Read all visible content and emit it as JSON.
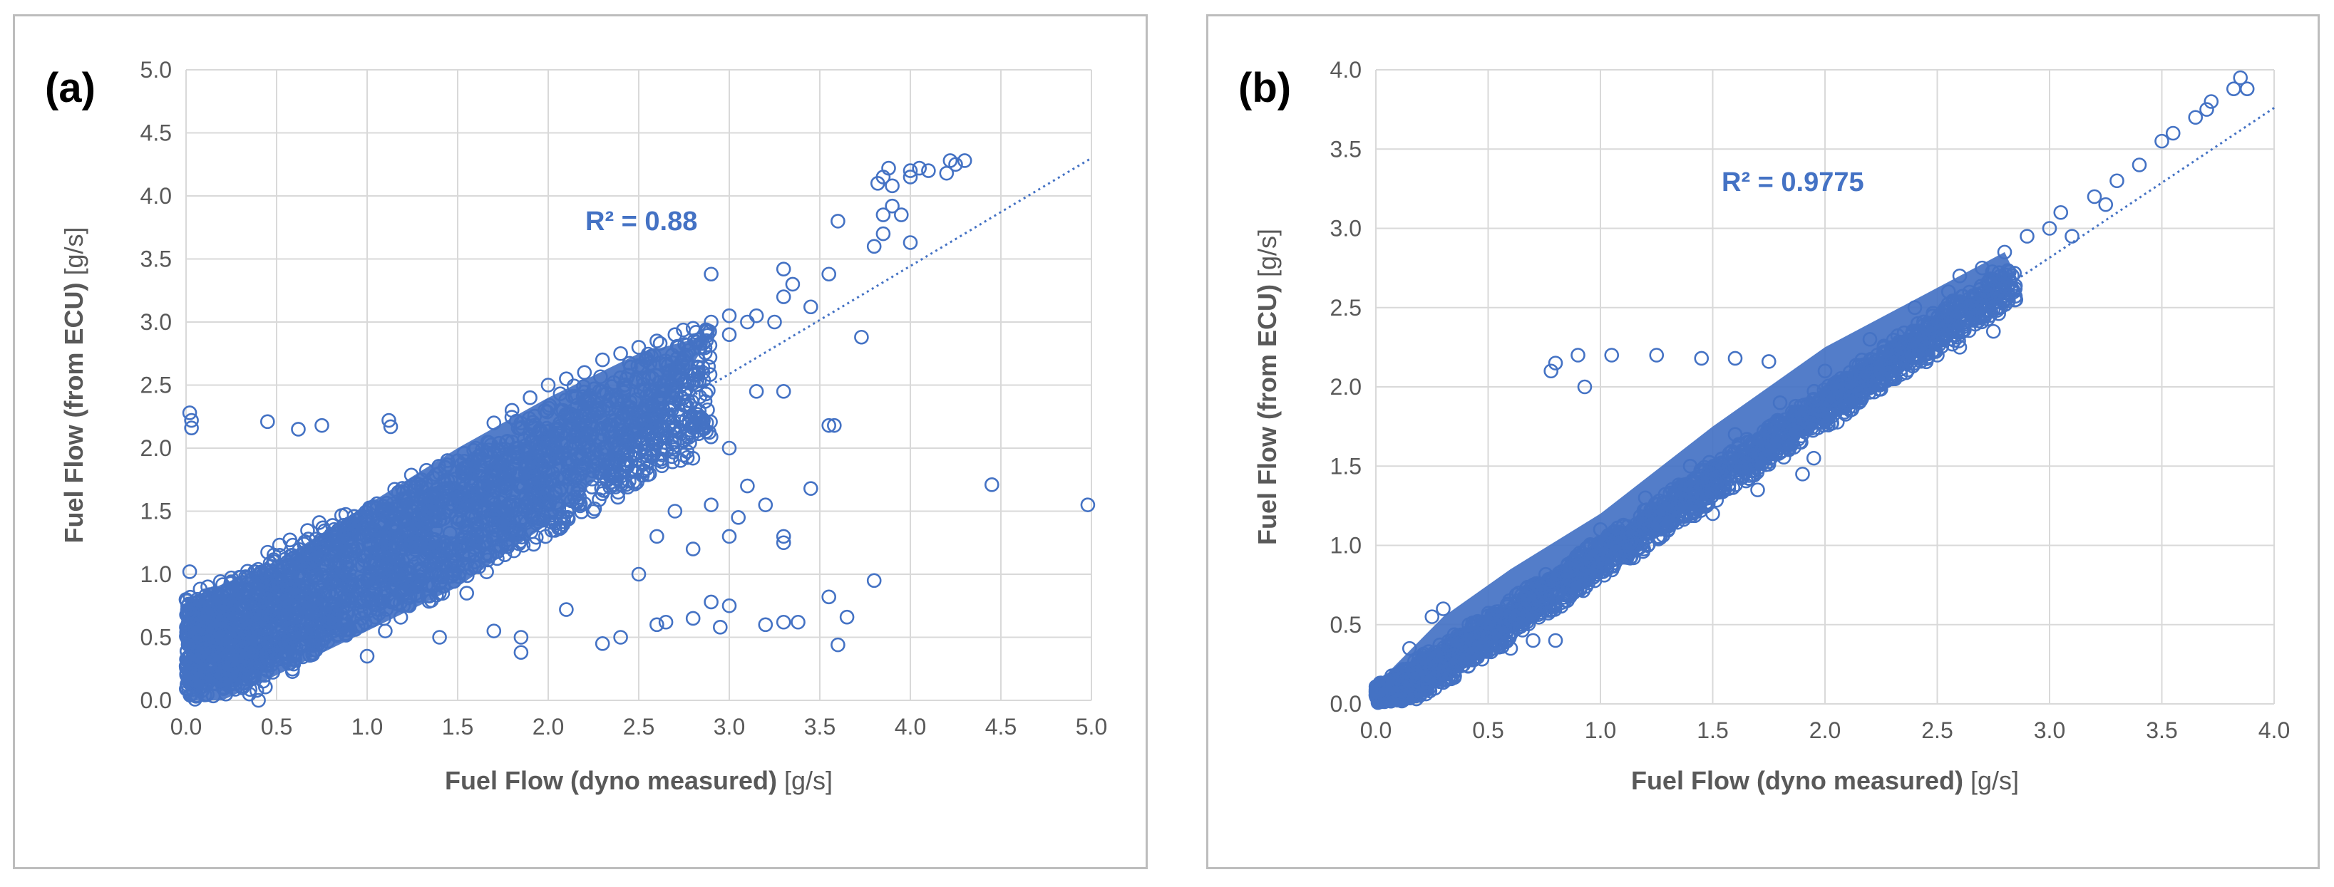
{
  "chart_data": [
    {
      "type": "scatter",
      "panel_label": "(a)",
      "xlabel": "Fuel Flow (dyno measured)",
      "xlabel_unit": "[g/s]",
      "ylabel": "Fuel Flow (from ECU)",
      "ylabel_unit": "[g/s]",
      "xlim": [
        0,
        5
      ],
      "ylim": [
        0,
        5
      ],
      "xticks": [
        "0.0",
        "0.5",
        "1.0",
        "1.5",
        "2.0",
        "2.5",
        "3.0",
        "3.5",
        "4.0",
        "4.5",
        "5.0"
      ],
      "yticks": [
        "0.0",
        "0.5",
        "1.0",
        "1.5",
        "2.0",
        "2.5",
        "3.0",
        "3.5",
        "4.0",
        "4.5",
        "5.0"
      ],
      "grid": true,
      "trendline": {
        "type": "linear",
        "style": "dotted",
        "x": [
          0,
          5
        ],
        "y": [
          0.02,
          4.3
        ]
      },
      "r_squared_label": "R² = 0.88",
      "marker_color": "#4472c4",
      "points": [
        [
          0.02,
          2.28
        ],
        [
          0.03,
          2.22
        ],
        [
          0.03,
          2.16
        ],
        [
          0.45,
          2.21
        ],
        [
          0.62,
          2.15
        ],
        [
          0.75,
          2.18
        ],
        [
          1.12,
          2.22
        ],
        [
          1.13,
          2.17
        ],
        [
          0.02,
          1.02
        ],
        [
          0.12,
          0.9
        ],
        [
          0.2,
          0.82
        ],
        [
          0.05,
          0.55
        ],
        [
          0.1,
          0.4
        ],
        [
          0.15,
          0.2
        ],
        [
          0.3,
          0.35
        ],
        [
          0.35,
          0.05
        ],
        [
          0.4,
          0.0
        ],
        [
          0.5,
          0.7
        ],
        [
          0.6,
          0.9
        ],
        [
          0.7,
          1.2
        ],
        [
          0.8,
          1.1
        ],
        [
          0.9,
          1.4
        ],
        [
          1.0,
          1.3
        ],
        [
          1.1,
          1.5
        ],
        [
          1.2,
          1.6
        ],
        [
          1.3,
          1.6
        ],
        [
          1.4,
          1.8
        ],
        [
          1.5,
          1.9
        ],
        [
          1.6,
          2.0
        ],
        [
          1.7,
          2.2
        ],
        [
          1.8,
          2.3
        ],
        [
          1.9,
          2.4
        ],
        [
          2.0,
          2.5
        ],
        [
          2.1,
          2.55
        ],
        [
          2.2,
          2.6
        ],
        [
          2.3,
          2.7
        ],
        [
          2.4,
          2.75
        ],
        [
          2.5,
          2.8
        ],
        [
          2.6,
          2.85
        ],
        [
          2.7,
          2.9
        ],
        [
          2.8,
          2.95
        ],
        [
          2.9,
          3.0
        ],
        [
          3.0,
          3.05
        ],
        [
          3.1,
          3.0
        ],
        [
          1.0,
          0.35
        ],
        [
          1.1,
          0.55
        ],
        [
          1.2,
          0.75
        ],
        [
          1.4,
          0.5
        ],
        [
          1.55,
          0.85
        ],
        [
          1.7,
          0.55
        ],
        [
          1.85,
          0.38
        ],
        [
          1.85,
          0.5
        ],
        [
          2.1,
          0.72
        ],
        [
          2.3,
          0.45
        ],
        [
          2.4,
          0.5
        ],
        [
          2.6,
          0.6
        ],
        [
          2.65,
          0.62
        ],
        [
          2.8,
          0.65
        ],
        [
          2.9,
          0.78
        ],
        [
          2.95,
          0.58
        ],
        [
          3.0,
          0.75
        ],
        [
          3.2,
          0.6
        ],
        [
          3.3,
          0.62
        ],
        [
          3.38,
          0.62
        ],
        [
          3.55,
          0.82
        ],
        [
          3.6,
          0.44
        ],
        [
          3.65,
          0.66
        ],
        [
          3.8,
          0.95
        ],
        [
          2.5,
          1.0
        ],
        [
          2.6,
          1.3
        ],
        [
          2.7,
          1.5
        ],
        [
          2.8,
          1.2
        ],
        [
          2.9,
          1.55
        ],
        [
          3.0,
          1.3
        ],
        [
          3.05,
          1.45
        ],
        [
          3.1,
          1.7
        ],
        [
          3.2,
          1.55
        ],
        [
          3.3,
          1.25
        ],
        [
          3.3,
          1.3
        ],
        [
          3.45,
          1.68
        ],
        [
          3.55,
          2.18
        ],
        [
          3.58,
          2.18
        ],
        [
          3.0,
          2.0
        ],
        [
          3.15,
          2.45
        ],
        [
          3.3,
          2.45
        ],
        [
          3.0,
          2.9
        ],
        [
          3.15,
          3.05
        ],
        [
          3.25,
          3.0
        ],
        [
          3.3,
          3.2
        ],
        [
          3.35,
          3.3
        ],
        [
          3.45,
          3.12
        ],
        [
          3.55,
          3.38
        ],
        [
          3.6,
          3.8
        ],
        [
          2.9,
          3.38
        ],
        [
          3.3,
          3.42
        ],
        [
          3.73,
          2.88
        ],
        [
          3.8,
          3.6
        ],
        [
          3.85,
          3.7
        ],
        [
          3.85,
          3.85
        ],
        [
          3.9,
          3.92
        ],
        [
          3.95,
          3.85
        ],
        [
          3.82,
          4.1
        ],
        [
          3.85,
          4.15
        ],
        [
          3.88,
          4.22
        ],
        [
          3.9,
          4.08
        ],
        [
          4.0,
          4.2
        ],
        [
          4.0,
          4.15
        ],
        [
          4.05,
          4.22
        ],
        [
          4.0,
          3.63
        ],
        [
          4.2,
          4.18
        ],
        [
          4.22,
          4.28
        ],
        [
          4.25,
          4.25
        ],
        [
          4.3,
          4.28
        ],
        [
          4.1,
          4.2
        ],
        [
          4.45,
          1.71
        ],
        [
          4.98,
          1.55
        ]
      ],
      "dense_band": [
        [
          0.0,
          0.0
        ],
        [
          0.0,
          0.8
        ],
        [
          0.5,
          1.1
        ],
        [
          1.0,
          1.55
        ],
        [
          1.5,
          2.0
        ],
        [
          2.0,
          2.4
        ],
        [
          2.5,
          2.75
        ],
        [
          2.9,
          2.9
        ],
        [
          2.6,
          2.2
        ],
        [
          2.0,
          1.4
        ],
        [
          1.5,
          0.9
        ],
        [
          1.0,
          0.55
        ],
        [
          0.5,
          0.2
        ],
        [
          0.2,
          0.0
        ]
      ]
    },
    {
      "type": "scatter",
      "panel_label": "(b)",
      "xlabel": "Fuel Flow (dyno measured)",
      "xlabel_unit": "[g/s]",
      "ylabel": "Fuel Flow (from ECU)",
      "ylabel_unit": "[g/s]",
      "xlim": [
        0,
        4
      ],
      "ylim": [
        0,
        4
      ],
      "xticks": [
        "0.0",
        "0.5",
        "1.0",
        "1.5",
        "2.0",
        "2.5",
        "3.0",
        "3.5",
        "4.0"
      ],
      "yticks": [
        "0.0",
        "0.5",
        "1.0",
        "1.5",
        "2.0",
        "2.5",
        "3.0",
        "3.5",
        "4.0"
      ],
      "grid": true,
      "trendline": {
        "type": "linear",
        "style": "dotted",
        "x": [
          0,
          4
        ],
        "y": [
          -0.02,
          3.76
        ]
      },
      "r_squared_label": "R² = 0.9775",
      "marker_color": "#4472c4",
      "points": [
        [
          0.78,
          2.1
        ],
        [
          0.8,
          2.15
        ],
        [
          0.9,
          2.2
        ],
        [
          0.93,
          2.0
        ],
        [
          1.05,
          2.2
        ],
        [
          1.25,
          2.2
        ],
        [
          1.45,
          2.18
        ],
        [
          1.6,
          2.18
        ],
        [
          1.75,
          2.16
        ],
        [
          0.15,
          0.35
        ],
        [
          0.25,
          0.55
        ],
        [
          0.3,
          0.6
        ],
        [
          0.45,
          0.3
        ],
        [
          0.6,
          0.35
        ],
        [
          0.7,
          0.4
        ],
        [
          0.8,
          0.4
        ],
        [
          1.0,
          1.1
        ],
        [
          1.2,
          1.3
        ],
        [
          1.4,
          1.5
        ],
        [
          1.6,
          1.7
        ],
        [
          1.8,
          1.9
        ],
        [
          2.0,
          2.1
        ],
        [
          2.2,
          2.3
        ],
        [
          2.4,
          2.5
        ],
        [
          2.6,
          2.7
        ],
        [
          2.7,
          2.75
        ],
        [
          2.8,
          2.85
        ],
        [
          2.9,
          2.95
        ],
        [
          3.0,
          3.0
        ],
        [
          3.05,
          3.1
        ],
        [
          3.1,
          2.95
        ],
        [
          3.2,
          3.2
        ],
        [
          3.25,
          3.15
        ],
        [
          3.3,
          3.3
        ],
        [
          3.4,
          3.4
        ],
        [
          3.5,
          3.55
        ],
        [
          3.55,
          3.6
        ],
        [
          3.65,
          3.7
        ],
        [
          3.7,
          3.75
        ],
        [
          3.72,
          3.8
        ],
        [
          3.82,
          3.88
        ],
        [
          3.85,
          3.95
        ],
        [
          3.88,
          3.88
        ],
        [
          2.1,
          1.9
        ],
        [
          2.3,
          2.05
        ],
        [
          2.5,
          2.2
        ],
        [
          2.6,
          2.25
        ],
        [
          2.75,
          2.35
        ],
        [
          2.85,
          2.55
        ],
        [
          1.9,
          1.45
        ],
        [
          1.95,
          1.55
        ],
        [
          1.7,
          1.35
        ],
        [
          1.5,
          1.2
        ],
        [
          2.55,
          2.6
        ],
        [
          2.65,
          2.45
        ]
      ],
      "dense_band": [
        [
          0.0,
          0.0
        ],
        [
          0.0,
          0.12
        ],
        [
          0.3,
          0.55
        ],
        [
          0.6,
          0.85
        ],
        [
          1.0,
          1.2
        ],
        [
          1.5,
          1.75
        ],
        [
          2.0,
          2.25
        ],
        [
          2.4,
          2.55
        ],
        [
          2.8,
          2.85
        ],
        [
          2.85,
          2.7
        ],
        [
          2.5,
          2.35
        ],
        [
          2.0,
          1.85
        ],
        [
          1.5,
          1.35
        ],
        [
          1.0,
          0.85
        ],
        [
          0.6,
          0.45
        ],
        [
          0.3,
          0.15
        ],
        [
          0.1,
          0.0
        ]
      ]
    }
  ]
}
